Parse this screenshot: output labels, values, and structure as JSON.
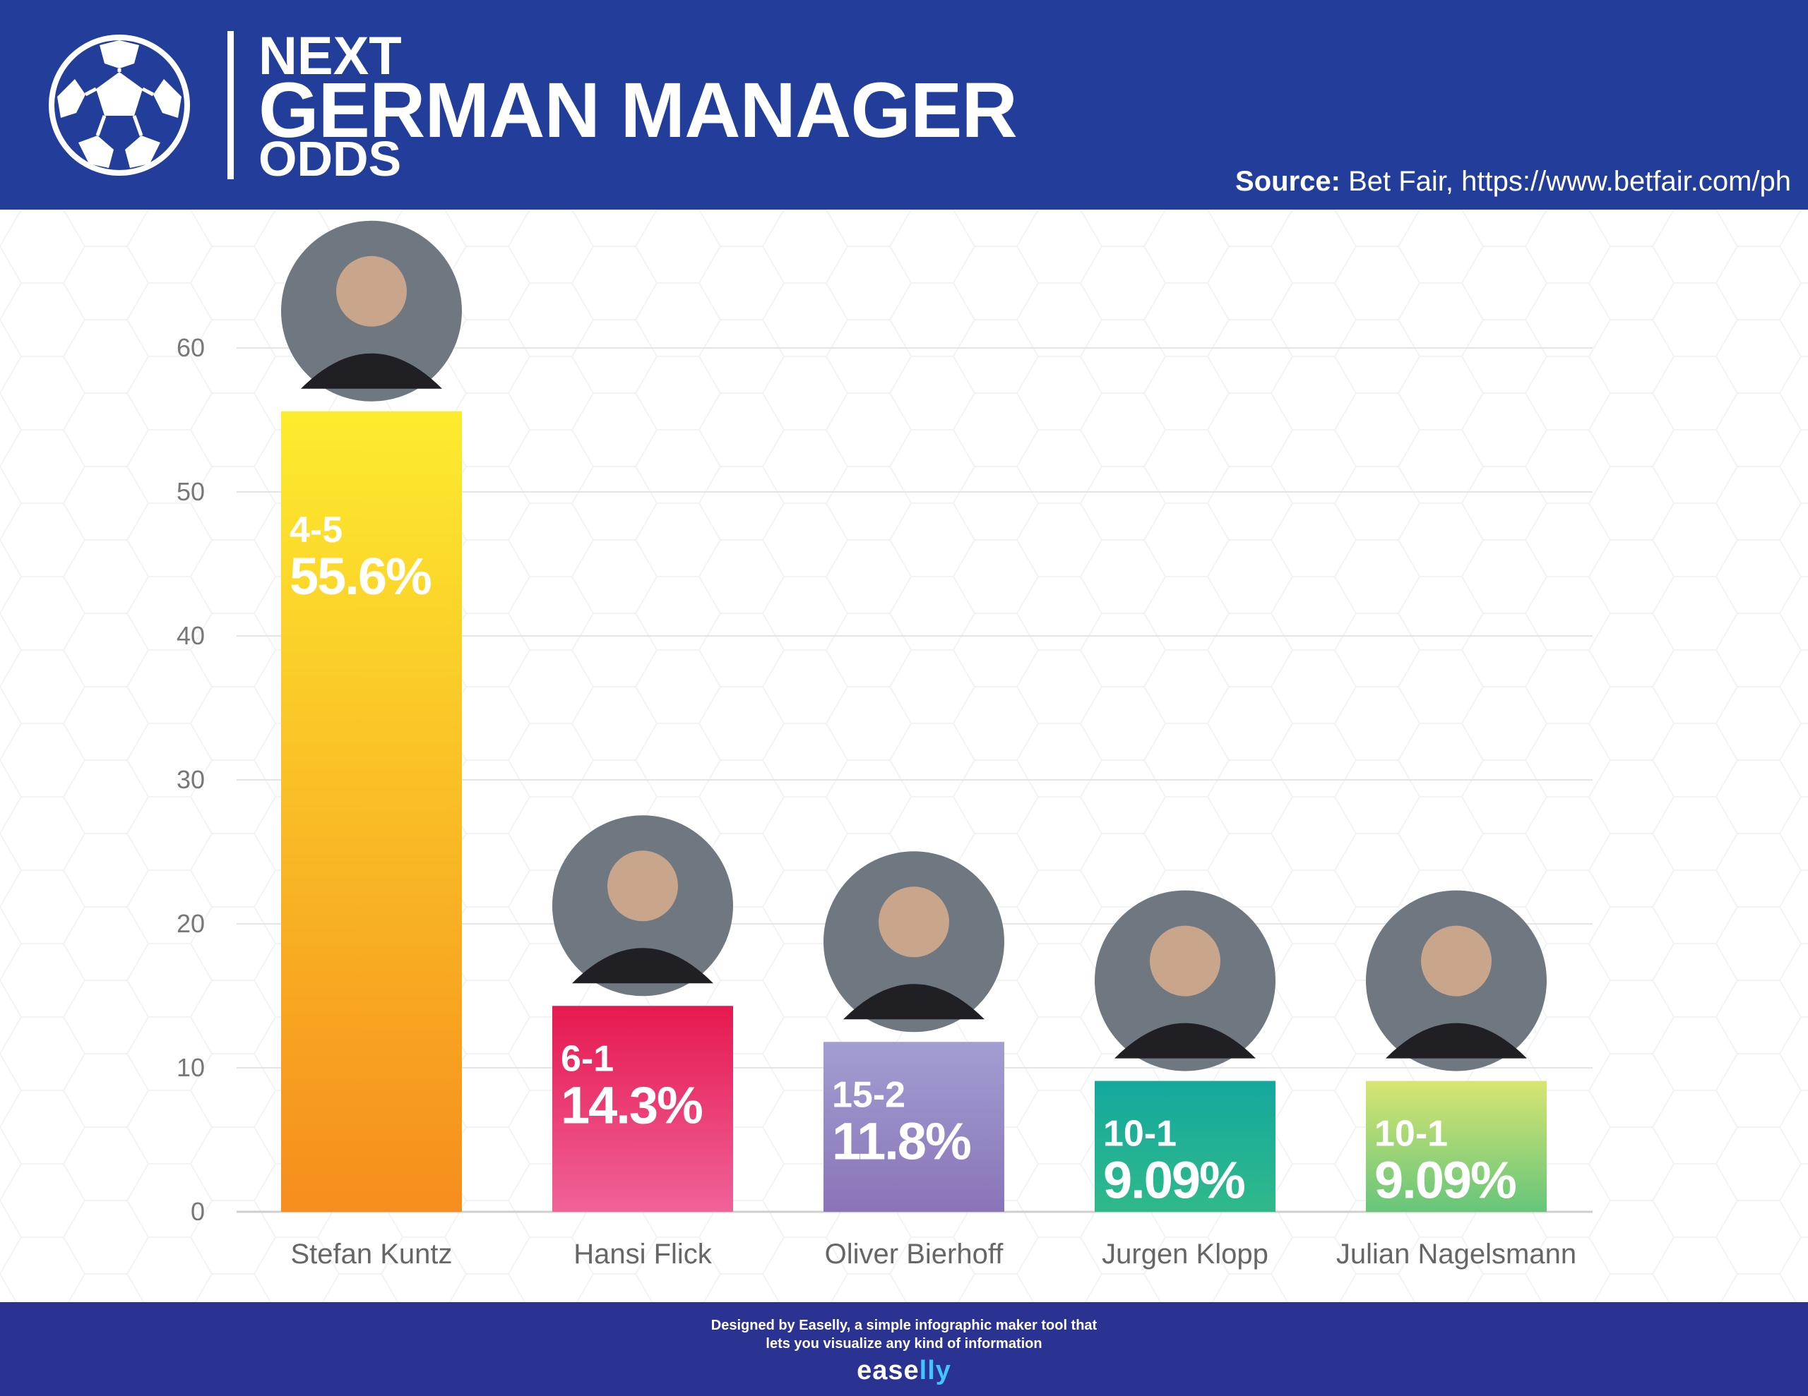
{
  "header": {
    "title_line1": "NEXT",
    "title_line2": "GERMAN MANAGER",
    "title_line3": "ODDS",
    "source_label": "Source:",
    "source_text": " Bet Fair, https://www.betfair.com/ph",
    "background": "#233e9a",
    "icon": "soccer-ball-icon"
  },
  "chart_data": {
    "type": "bar",
    "title": "NEXT GERMAN MANAGER ODDS",
    "xlabel": "",
    "ylabel": "",
    "ylim": [
      0,
      60
    ],
    "yticks": [
      "0",
      "10",
      "20",
      "30",
      "40",
      "50",
      "60"
    ],
    "grid": true,
    "categories": [
      "Stefan Kuntz",
      "Hansi Flick",
      "Oliver Bierhoff",
      "Jurgen Klopp",
      "Julian Nagelsmann"
    ],
    "values": [
      55.6,
      14.3,
      11.8,
      9.09,
      9.09
    ],
    "odds_labels": [
      "4-5",
      "6-1",
      "15-2",
      "10-1",
      "10-1"
    ],
    "value_labels": [
      "55.6%",
      "14.3%",
      "11.8%",
      "9.09%",
      "9.09%"
    ],
    "bar_colors": [
      [
        "#fdec2e",
        "#f68d1d"
      ],
      [
        "#e5194f",
        "#f0629a"
      ],
      [
        "#a29ed2",
        "#8a74b8"
      ],
      [
        "#14a89e",
        "#2fb98a"
      ],
      [
        "#d8e572",
        "#66c57a"
      ]
    ],
    "portraits": [
      "portrait-stefan-kuntz",
      "portrait-hansi-flick",
      "portrait-oliver-bierhoff",
      "portrait-jurgen-klopp",
      "portrait-julian-nagelsmann"
    ]
  },
  "footer": {
    "line1": "Designed by Easelly, a simple infographic maker tool that",
    "line2": "lets you visualize any kind of information",
    "brand_a": "ease",
    "brand_b": "lly",
    "background": "#2b3392",
    "brand_accent": "#43c3ff"
  }
}
